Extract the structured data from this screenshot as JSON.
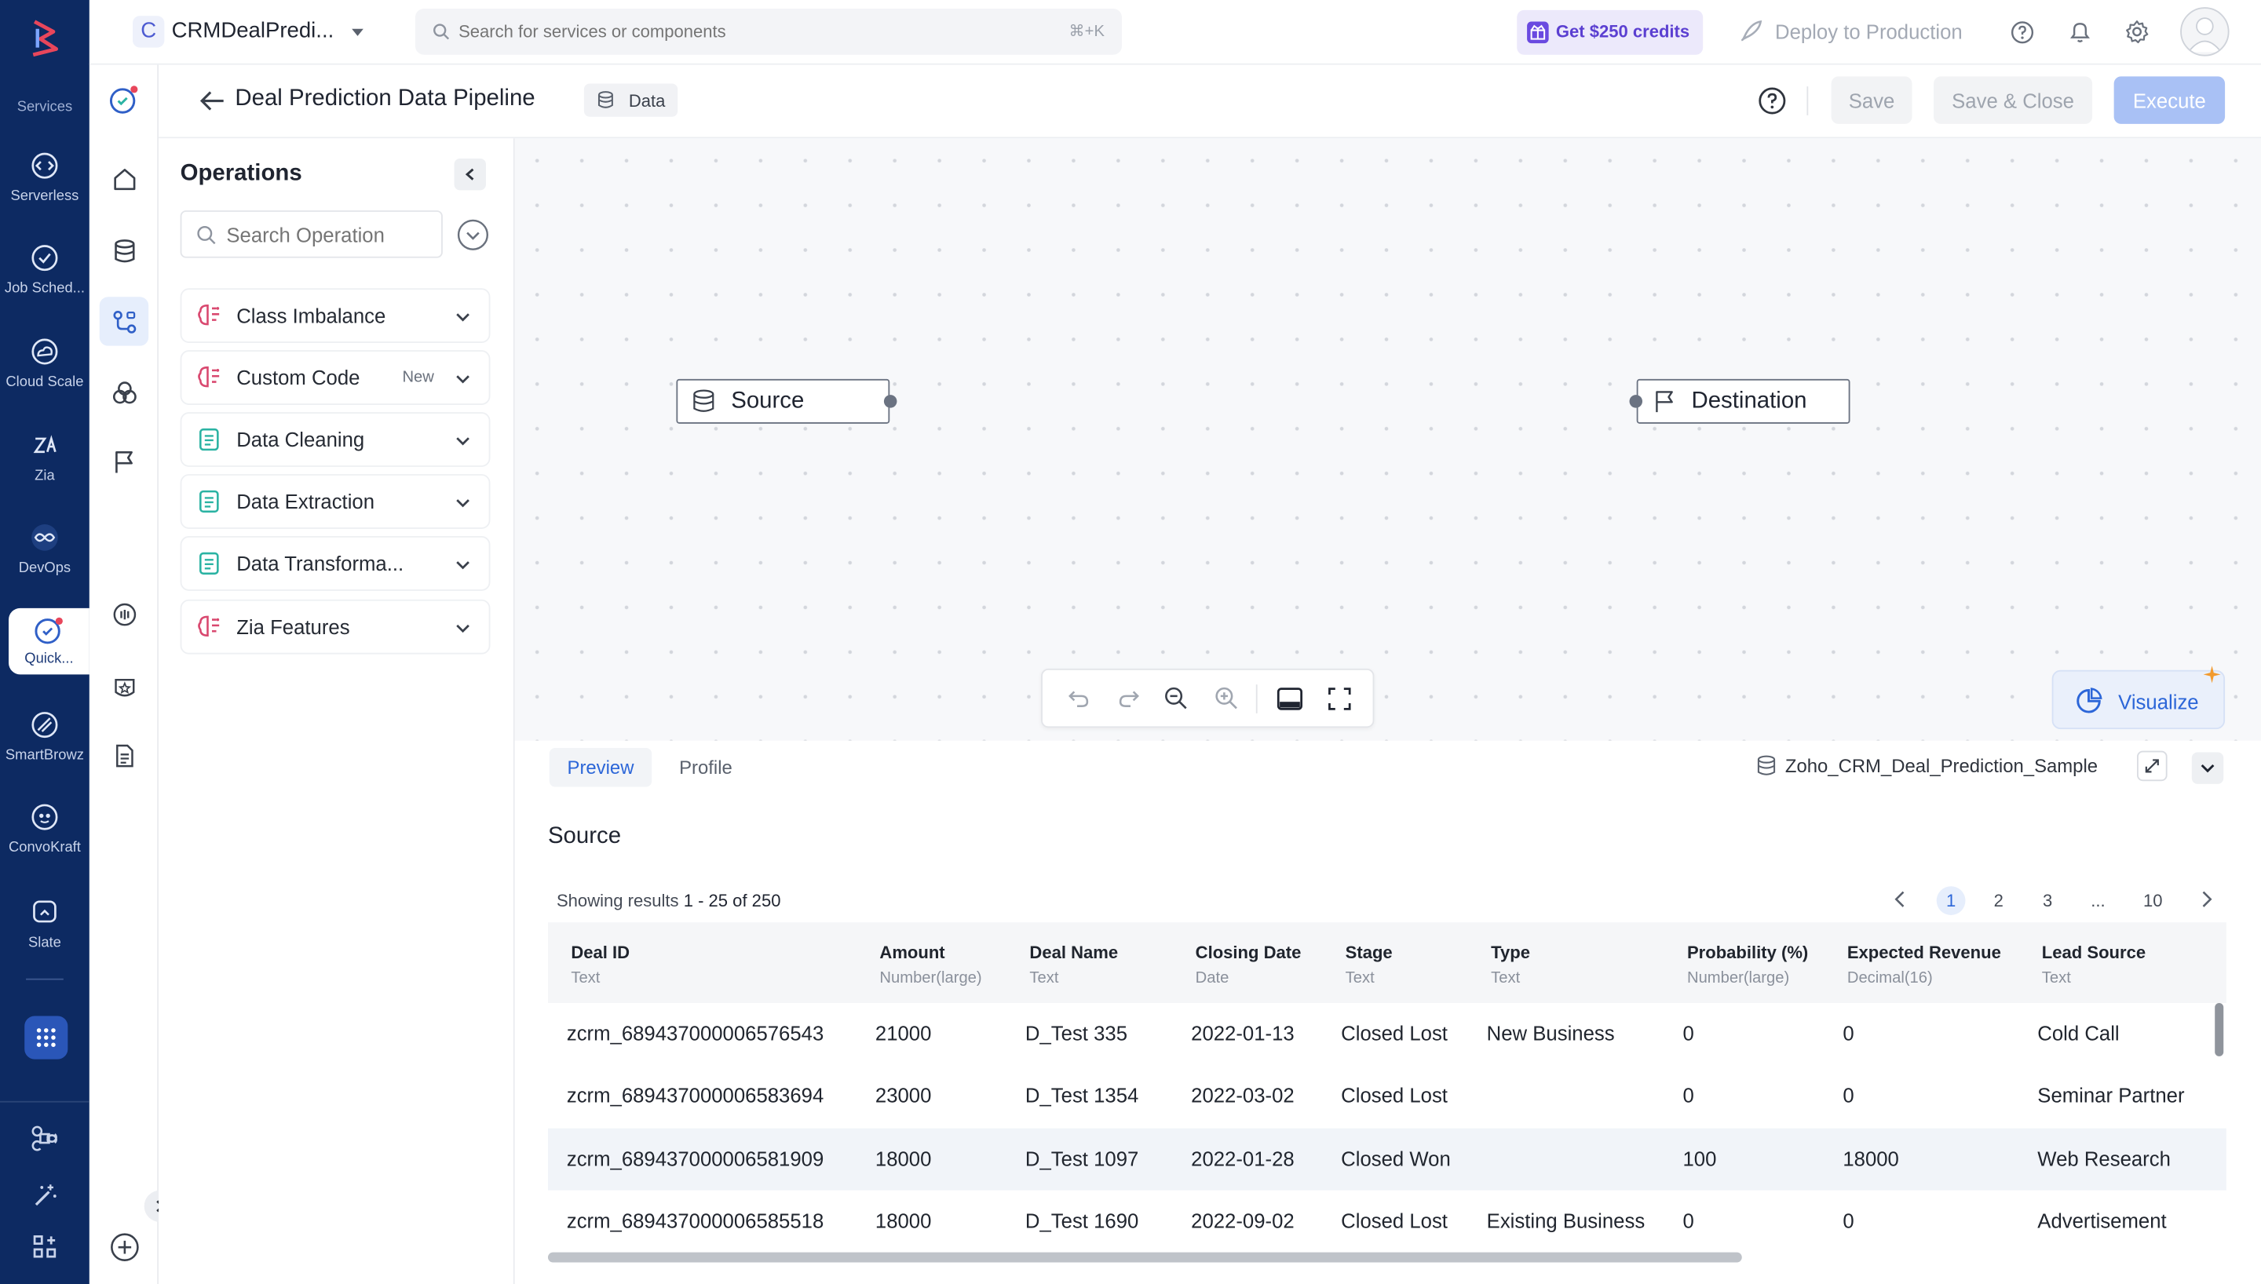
{
  "rail": {
    "services_label": "Services",
    "items": [
      {
        "label": "Serverless",
        "icon": "serverless-icon"
      },
      {
        "label": "Job Sched...",
        "icon": "job-scheduling-icon"
      },
      {
        "label": "Cloud Scale",
        "icon": "cloud-scale-icon"
      },
      {
        "label": "Zia",
        "icon": "zia-icon"
      },
      {
        "label": "DevOps",
        "icon": "devops-icon"
      },
      {
        "label": "Quick...",
        "icon": "quickml-icon"
      },
      {
        "label": "SmartBrowz",
        "icon": "smartbrowz-icon"
      },
      {
        "label": "ConvoKraft",
        "icon": "convokraft-icon"
      },
      {
        "label": "Slate",
        "icon": "slate-icon"
      }
    ]
  },
  "header": {
    "project_initial": "C",
    "project_name": "CRMDealPredi...",
    "search_placeholder": "Search for services or components",
    "search_shortcut": "⌘+K",
    "credits_label": "Get $250 credits",
    "deploy_label": "Deploy to Production"
  },
  "pipeline": {
    "title": "Deal Prediction Data Pipeline",
    "badge": "Data",
    "save_label": "Save",
    "save_close_label": "Save & Close",
    "execute_label": "Execute"
  },
  "operations": {
    "title": "Operations",
    "search_placeholder": "Search Operation",
    "items": [
      {
        "label": "Class Imbalance",
        "icon": "brain-icon"
      },
      {
        "label": "Custom Code",
        "icon": "brain-icon",
        "badge": "New"
      },
      {
        "label": "Data Cleaning",
        "icon": "document-icon"
      },
      {
        "label": "Data Extraction",
        "icon": "document-icon"
      },
      {
        "label": "Data Transforma...",
        "icon": "document-icon"
      },
      {
        "label": "Zia Features",
        "icon": "brain-icon"
      }
    ]
  },
  "canvas": {
    "source_label": "Source",
    "destination_label": "Destination",
    "visualize_label": "Visualize"
  },
  "preview": {
    "tabs": [
      "Preview",
      "Profile"
    ],
    "active_tab": "Preview",
    "dataset_name": "Zoho_CRM_Deal_Prediction_Sample",
    "section_title": "Source",
    "results_prefix": "Showing results ",
    "results_range": "1 - 25 of 250",
    "pages": [
      "1",
      "2",
      "3",
      "...",
      "10"
    ],
    "current_page": "1",
    "columns": [
      {
        "name": "Deal ID",
        "type": "Text"
      },
      {
        "name": "Amount",
        "type": "Number(large)"
      },
      {
        "name": "Deal Name",
        "type": "Text"
      },
      {
        "name": "Closing Date",
        "type": "Date"
      },
      {
        "name": "Stage",
        "type": "Text"
      },
      {
        "name": "Type",
        "type": "Text"
      },
      {
        "name": "Probability (%)",
        "type": "Number(large)"
      },
      {
        "name": "Expected Revenue",
        "type": "Decimal(16)"
      },
      {
        "name": "Lead Source",
        "type": "Text"
      }
    ],
    "rows": [
      [
        "zcrm_689437000006576543",
        "21000",
        "D_Test 335",
        "2022-01-13",
        "Closed Lost",
        "New Business",
        "0",
        "0",
        "Cold Call"
      ],
      [
        "zcrm_689437000006583694",
        "23000",
        "D_Test 1354",
        "2022-03-02",
        "Closed Lost",
        "",
        "0",
        "0",
        "Seminar Partner"
      ],
      [
        "zcrm_689437000006581909",
        "18000",
        "D_Test 1097",
        "2022-01-28",
        "Closed Won",
        "",
        "100",
        "18000",
        "Web Research"
      ],
      [
        "zcrm_689437000006585518",
        "18000",
        "D_Test 1690",
        "2022-09-02",
        "Closed Lost",
        "Existing Business",
        "0",
        "0",
        "Advertisement"
      ]
    ]
  },
  "colors": {
    "rail": "#0d2a62",
    "accent": "#2c66d8",
    "execute": "#a9c1f5",
    "credits_bg": "#ece9fb",
    "credits_fg": "#5b3fd1",
    "brain": "#d9486f",
    "doc": "#2bb3a3"
  }
}
